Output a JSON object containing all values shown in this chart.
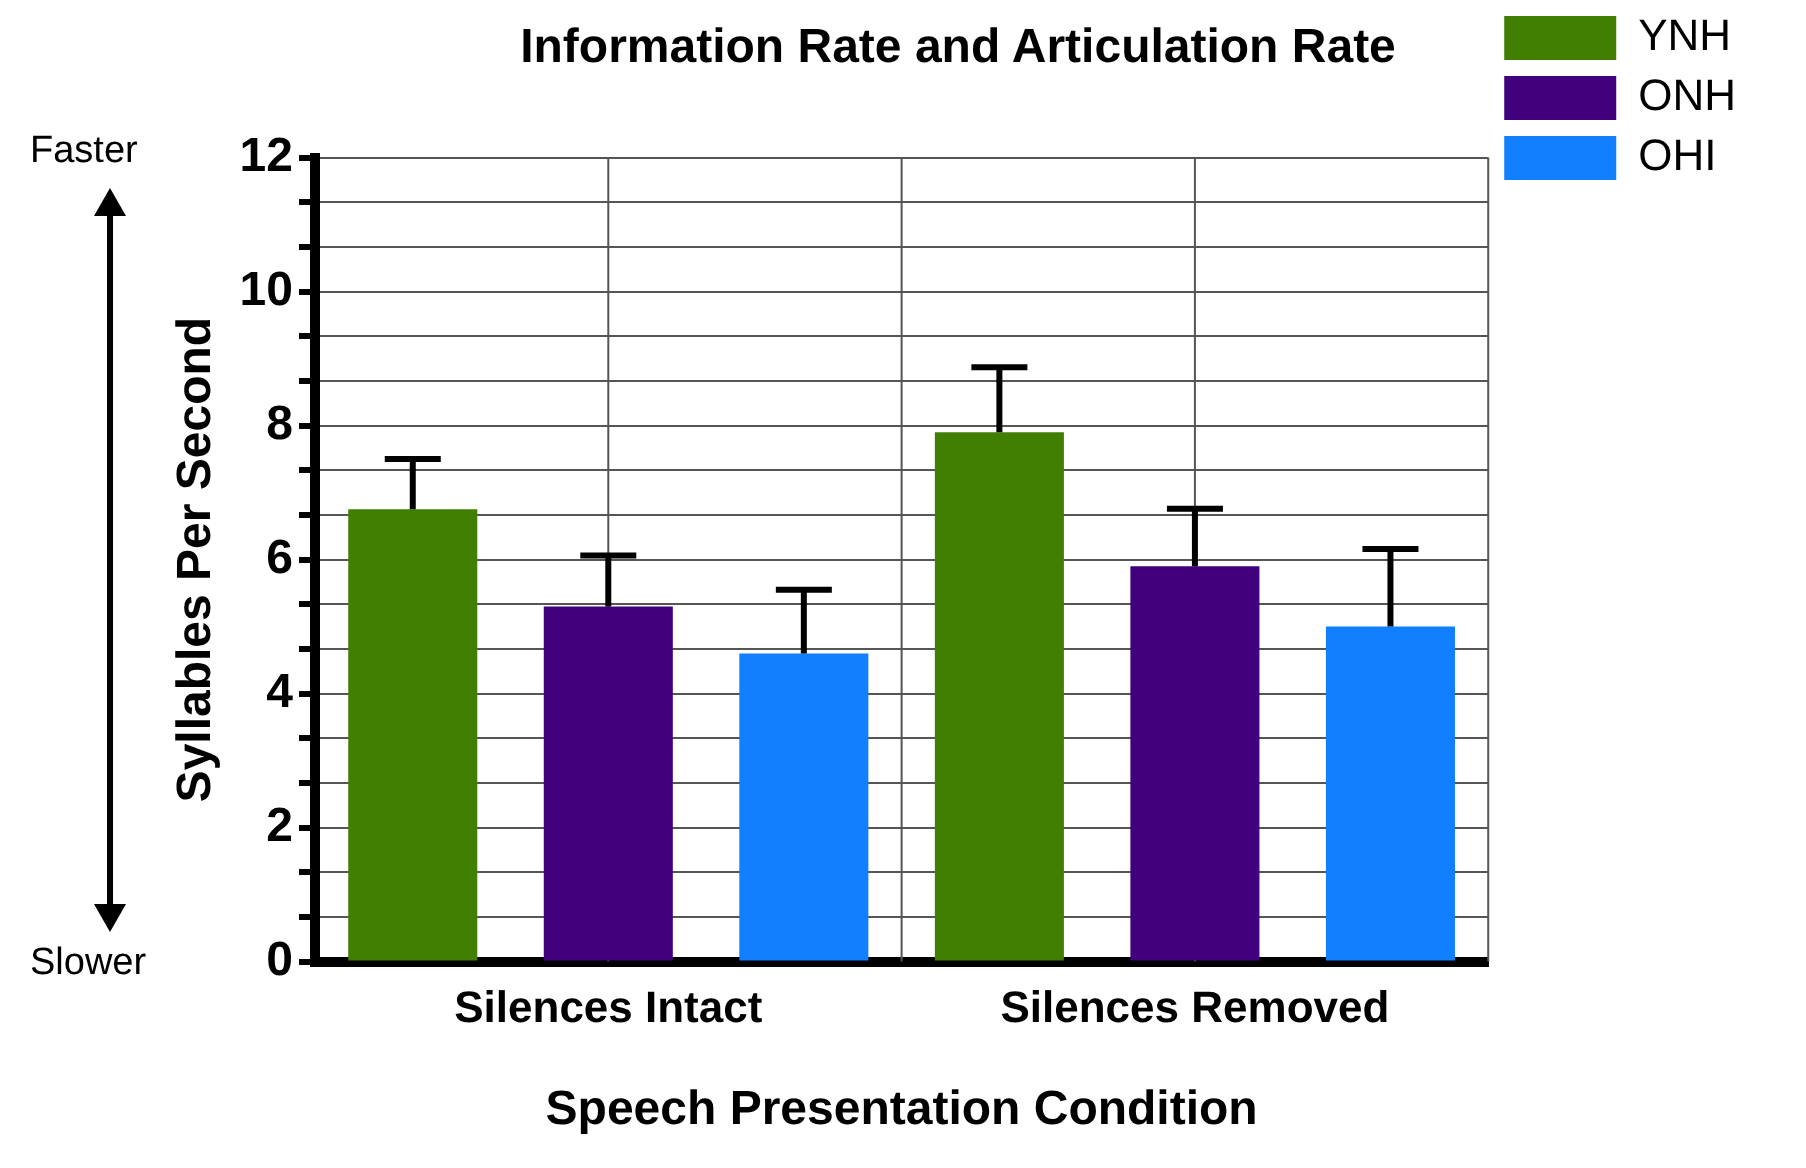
{
  "chart_data": {
    "type": "bar",
    "title": "Information Rate and Articulation Rate",
    "xlabel": "Speech Presentation Condition",
    "ylabel": "Syllables Per Second",
    "categories": [
      "Silences Intact",
      "Silences Removed"
    ],
    "series": [
      {
        "name": "YNH",
        "color": "#417f02",
        "values": [
          6.75,
          7.9
        ],
        "errors": [
          [
            6.75,
            7.5
          ],
          [
            7.9,
            8.87
          ]
        ]
      },
      {
        "name": "ONH",
        "color": "#41007c",
        "values": [
          5.3,
          5.9
        ],
        "errors": [
          [
            5.3,
            6.06
          ],
          [
            5.9,
            6.76
          ]
        ]
      },
      {
        "name": "OHI",
        "color": "#117ffe",
        "values": [
          4.6,
          5.0
        ],
        "errors": [
          [
            4.6,
            5.55
          ],
          [
            5.0,
            6.16
          ]
        ]
      }
    ],
    "ylim": [
      0,
      12
    ],
    "yticks": [
      0,
      {
        "value": 0.667,
        "label": null
      },
      {
        "value": 1.333,
        "label": null
      },
      2,
      {
        "value": 2.667,
        "label": null
      },
      {
        "value": 3.333,
        "label": null
      },
      4,
      {
        "value": 4.667,
        "label": null
      },
      {
        "value": 5.333,
        "label": null
      },
      6,
      {
        "value": 6.667,
        "label": null
      },
      {
        "value": 7.333,
        "label": null
      },
      8,
      {
        "value": 8.667,
        "label": null
      },
      {
        "value": 9.333,
        "label": null
      },
      10,
      {
        "value": 10.667,
        "label": null
      },
      {
        "value": 11.333,
        "label": null
      },
      12
    ],
    "grid": true,
    "legend": "top right",
    "annotations": [
      "Faster",
      "Slower"
    ]
  }
}
